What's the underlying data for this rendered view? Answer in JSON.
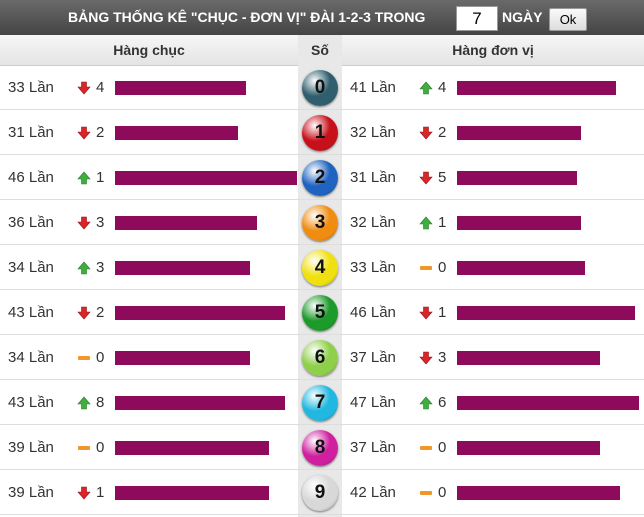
{
  "header": {
    "title": "BẢNG THỐNG KÊ \"CHỤC - ĐƠN VỊ\" ĐÀI 1-2-3 TRONG",
    "days": "7",
    "days_label": "NGÀY",
    "button": "Ok"
  },
  "columns": {
    "tens": "Hàng chục",
    "digit": "Số",
    "units": "Hàng đơn vị"
  },
  "bar_color": "#8e0b5c",
  "rows": [
    {
      "digit": 0,
      "ball_color": "#2f5f6e",
      "tens": {
        "count": 33,
        "count_label": "33 Lần",
        "trend": "down",
        "change": 4
      },
      "units": {
        "count": 41,
        "count_label": "41 Lần",
        "trend": "up",
        "change": 4
      }
    },
    {
      "digit": 1,
      "ball_color": "#c8101a",
      "tens": {
        "count": 31,
        "count_label": "31 Lần",
        "trend": "down",
        "change": 2
      },
      "units": {
        "count": 32,
        "count_label": "32 Lần",
        "trend": "down",
        "change": 2
      }
    },
    {
      "digit": 2,
      "ball_color": "#1f63c0",
      "tens": {
        "count": 46,
        "count_label": "46 Lần",
        "trend": "up",
        "change": 1
      },
      "units": {
        "count": 31,
        "count_label": "31 Lần",
        "trend": "down",
        "change": 5
      }
    },
    {
      "digit": 3,
      "ball_color": "#f08c10",
      "tens": {
        "count": 36,
        "count_label": "36 Lần",
        "trend": "down",
        "change": 3
      },
      "units": {
        "count": 32,
        "count_label": "32 Lần",
        "trend": "up",
        "change": 1
      }
    },
    {
      "digit": 4,
      "ball_color": "#f0e010",
      "tens": {
        "count": 34,
        "count_label": "34 Lần",
        "trend": "up",
        "change": 3
      },
      "units": {
        "count": 33,
        "count_label": "33 Lần",
        "trend": "flat",
        "change": 0
      }
    },
    {
      "digit": 5,
      "ball_color": "#1c9a2a",
      "tens": {
        "count": 43,
        "count_label": "43 Lần",
        "trend": "down",
        "change": 2
      },
      "units": {
        "count": 46,
        "count_label": "46 Lần",
        "trend": "down",
        "change": 1
      }
    },
    {
      "digit": 6,
      "ball_color": "#8ed04a",
      "tens": {
        "count": 34,
        "count_label": "34 Lần",
        "trend": "flat",
        "change": 0
      },
      "units": {
        "count": 37,
        "count_label": "37 Lần",
        "trend": "down",
        "change": 3
      }
    },
    {
      "digit": 7,
      "ball_color": "#20b8e0",
      "tens": {
        "count": 43,
        "count_label": "43 Lần",
        "trend": "up",
        "change": 8
      },
      "units": {
        "count": 47,
        "count_label": "47 Lần",
        "trend": "up",
        "change": 6
      }
    },
    {
      "digit": 8,
      "ball_color": "#d020a0",
      "tens": {
        "count": 39,
        "count_label": "39 Lần",
        "trend": "flat",
        "change": 0
      },
      "units": {
        "count": 37,
        "count_label": "37 Lần",
        "trend": "flat",
        "change": 0
      }
    },
    {
      "digit": 9,
      "ball_color": "#d8d8d8",
      "tens": {
        "count": 39,
        "count_label": "39 Lần",
        "trend": "down",
        "change": 1
      },
      "units": {
        "count": 42,
        "count_label": "42 Lần",
        "trend": "flat",
        "change": 0
      }
    }
  ]
}
